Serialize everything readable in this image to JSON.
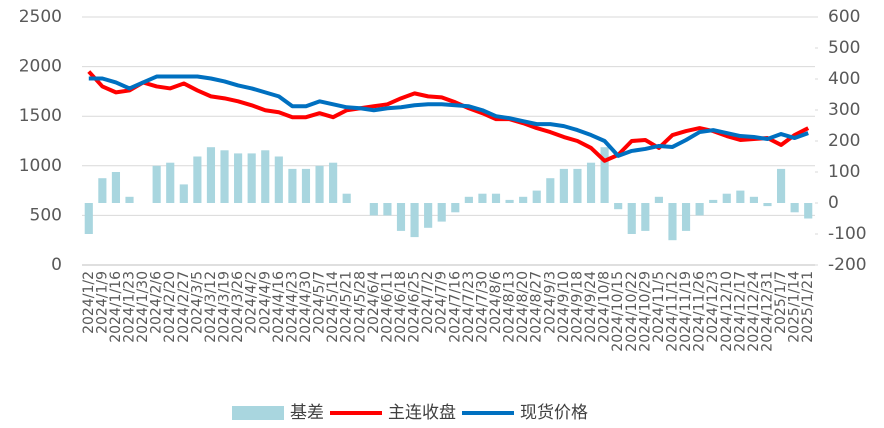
{
  "chart_data": {
    "type": "combo",
    "categories": [
      "2024/1/2",
      "2024/1/9",
      "2024/1/16",
      "2024/1/23",
      "2024/1/30",
      "2024/2/6",
      "2024/2/20",
      "2024/2/27",
      "2024/3/5",
      "2024/3/12",
      "2024/3/19",
      "2024/3/26",
      "2024/4/2",
      "2024/4/9",
      "2024/4/16",
      "2024/4/23",
      "2024/4/30",
      "2024/5/7",
      "2024/5/14",
      "2024/5/21",
      "2024/5/28",
      "2024/6/4",
      "2024/6/11",
      "2024/6/18",
      "2024/6/25",
      "2024/7/2",
      "2024/7/9",
      "2024/7/16",
      "2024/7/23",
      "2024/7/30",
      "2024/8/6",
      "2024/8/13",
      "2024/8/20",
      "2024/8/27",
      "2024/9/3",
      "2024/9/10",
      "2024/9/18",
      "2024/9/24",
      "2024/10/8",
      "2024/10/15",
      "2024/10/22",
      "2024/10/29",
      "2024/11/5",
      "2024/11/12",
      "2024/11/19",
      "2024/11/26",
      "2024/12/3",
      "2024/12/10",
      "2024/12/17",
      "2024/12/24",
      "2024/12/31",
      "2025/1/7",
      "2025/1/14",
      "2025/1/21"
    ],
    "series": [
      {
        "name": "基差",
        "kind": "bar",
        "axis": "y2",
        "color": "#a9d6df",
        "values": [
          -100,
          80,
          100,
          20,
          0,
          120,
          130,
          60,
          150,
          180,
          170,
          160,
          160,
          170,
          150,
          110,
          110,
          120,
          130,
          30,
          0,
          -40,
          -40,
          -90,
          -110,
          -80,
          -60,
          -30,
          20,
          30,
          30,
          10,
          20,
          40,
          80,
          110,
          110,
          130,
          180,
          -20,
          -100,
          -90,
          20,
          -120,
          -90,
          -40,
          10,
          30,
          40,
          20,
          -10,
          110,
          -30,
          -50
        ]
      },
      {
        "name": "主连收盘",
        "kind": "line",
        "color": "#ff0000",
        "values": [
          1950,
          1800,
          1740,
          1760,
          1840,
          1800,
          1780,
          1830,
          1760,
          1700,
          1680,
          1650,
          1610,
          1560,
          1540,
          1490,
          1490,
          1530,
          1490,
          1560,
          1580,
          1600,
          1620,
          1680,
          1730,
          1700,
          1690,
          1640,
          1580,
          1530,
          1470,
          1470,
          1430,
          1380,
          1340,
          1290,
          1250,
          1180,
          1050,
          1110,
          1250,
          1260,
          1180,
          1310,
          1350,
          1380,
          1350,
          1300,
          1260,
          1270,
          1280,
          1210,
          1310,
          1380
        ]
      },
      {
        "name": "现货价格",
        "kind": "line",
        "color": "#0070c0",
        "values": [
          1880,
          1880,
          1840,
          1780,
          1840,
          1900,
          1900,
          1900,
          1900,
          1880,
          1850,
          1810,
          1780,
          1740,
          1700,
          1600,
          1600,
          1650,
          1620,
          1590,
          1580,
          1560,
          1580,
          1590,
          1610,
          1620,
          1620,
          1610,
          1600,
          1560,
          1500,
          1480,
          1450,
          1420,
          1420,
          1400,
          1360,
          1310,
          1250,
          1100,
          1150,
          1170,
          1200,
          1190,
          1260,
          1340,
          1360,
          1330,
          1300,
          1290,
          1270,
          1320,
          1280,
          1330
        ]
      }
    ],
    "ylim": [
      0,
      2500
    ],
    "yticks": [
      0,
      500,
      1000,
      1500,
      2000,
      2500
    ],
    "y2lim": [
      -200,
      600
    ],
    "y2ticks": [
      -200,
      -100,
      0,
      100,
      200,
      300,
      400,
      500,
      600
    ],
    "grid": true,
    "legend": "bottom"
  }
}
